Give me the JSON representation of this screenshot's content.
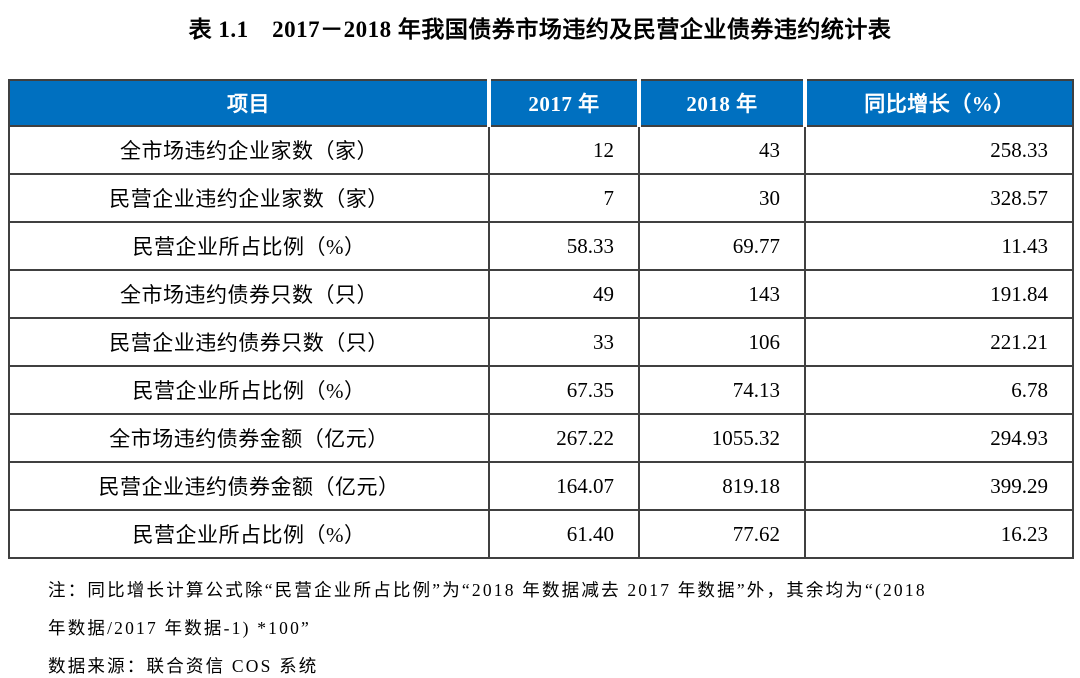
{
  "title": "表 1.1　2017－2018 年我国债券市场违约及民营企业债券违约统计表",
  "table": {
    "headers": [
      "项目",
      "2017 年",
      "2018 年",
      "同比增长（%）"
    ],
    "rows": [
      [
        "全市场违约企业家数（家）",
        "12",
        "43",
        "258.33"
      ],
      [
        "民营企业违约企业家数（家）",
        "7",
        "30",
        "328.57"
      ],
      [
        "民营企业所占比例（%）",
        "58.33",
        "69.77",
        "11.43"
      ],
      [
        "全市场违约债券只数（只）",
        "49",
        "143",
        "191.84"
      ],
      [
        "民营企业违约债券只数（只）",
        "33",
        "106",
        "221.21"
      ],
      [
        "民营企业所占比例（%）",
        "67.35",
        "74.13",
        "6.78"
      ],
      [
        "全市场违约债券金额（亿元）",
        "267.22",
        "1055.32",
        "294.93"
      ],
      [
        "民营企业违约债券金额（亿元）",
        "164.07",
        "819.18",
        "399.29"
      ],
      [
        "民营企业所占比例（%）",
        "61.40",
        "77.62",
        "16.23"
      ]
    ]
  },
  "notes": {
    "line1": "注：同比增长计算公式除“民营企业所占比例”为“2018 年数据减去 2017 年数据”外，其余均为“(2018",
    "line2": "年数据/2017 年数据-1) *100”",
    "source": "数据来源：联合资信 COS 系统"
  },
  "colors": {
    "header_bg": "#0070c0",
    "header_text": "#ffffff",
    "border": "#404040"
  }
}
